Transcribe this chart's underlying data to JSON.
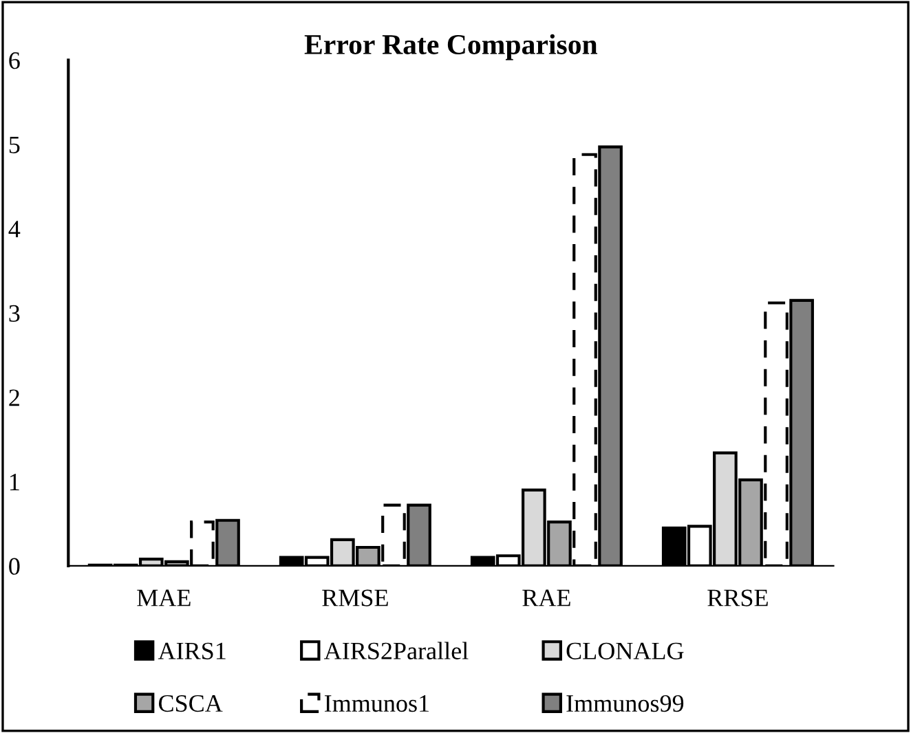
{
  "chart_data": {
    "type": "bar",
    "title": "Error Rate Comparison",
    "categories": [
      "MAE",
      "RMSE",
      "RAE",
      "RRSE"
    ],
    "series": [
      {
        "name": "AIRS1",
        "color": "#000000",
        "values": [
          0.01,
          0.1,
          0.1,
          0.45
        ]
      },
      {
        "name": "AIRS2Parallel",
        "color": "#ffffff",
        "values": [
          0.01,
          0.1,
          0.12,
          0.47
        ]
      },
      {
        "name": "CLONALG",
        "color": "#d9d9d9",
        "values": [
          0.08,
          0.31,
          0.9,
          1.34
        ]
      },
      {
        "name": "CSCA",
        "color": "#a6a6a6",
        "values": [
          0.05,
          0.22,
          0.52,
          1.02
        ]
      },
      {
        "name": "Immunos1",
        "color": "#ffffff",
        "values": [
          0.52,
          0.72,
          4.88,
          3.12
        ],
        "line_style": "dashed"
      },
      {
        "name": "Immunos99",
        "color": "#808080",
        "values": [
          0.54,
          0.72,
          4.97,
          3.15
        ]
      }
    ],
    "ylim": [
      0,
      6
    ],
    "yticks": [
      0,
      1,
      2,
      3,
      4,
      5,
      6
    ],
    "grid": false,
    "legend": "bottom"
  }
}
